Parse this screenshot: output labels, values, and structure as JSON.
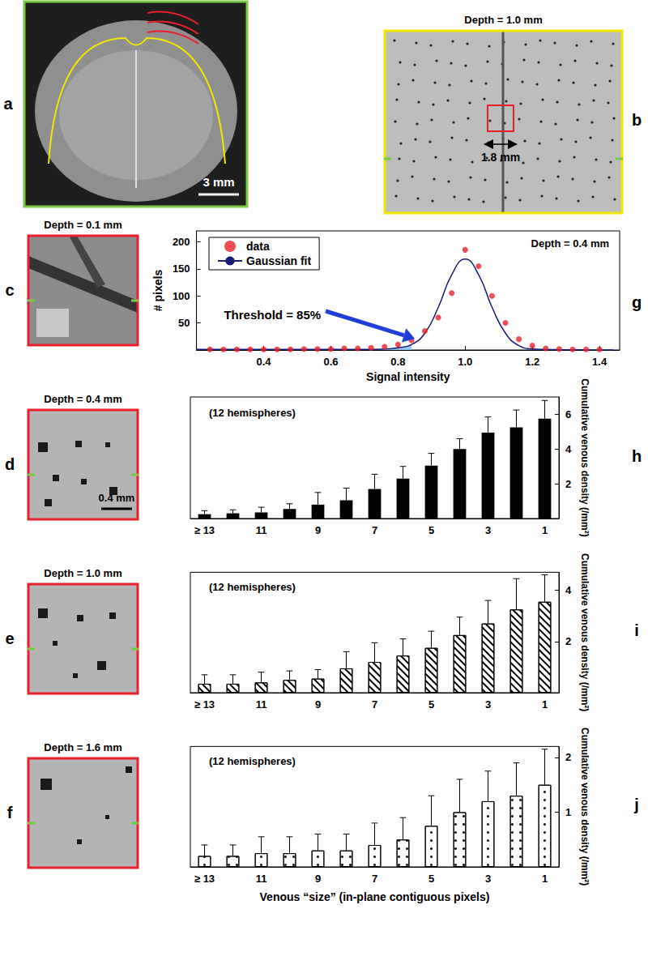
{
  "panels": [
    {
      "panel": "a",
      "scale_bar": "3 mm"
    },
    {
      "panel": "b",
      "title": "Depth = 1.0 mm",
      "scale_bar": "1.8 mm"
    },
    {
      "panel": "c",
      "title": "Depth = 0.1 mm"
    },
    {
      "panel": "d",
      "title": "Depth = 0.4 mm",
      "scale_bar": "0.4 mm"
    },
    {
      "panel": "e",
      "title": "Depth = 1.0 mm"
    },
    {
      "panel": "f",
      "title": "Depth = 1.6 mm"
    }
  ],
  "chart_data": [
    {
      "panel": "g",
      "type": "scatter",
      "annotation": "Depth = 0.4 mm",
      "x_label": "Signal intensity",
      "y_label": "# pixels",
      "threshold": {
        "value": 0.85,
        "label": "Threshold = 85%"
      },
      "xlim": [
        0.2,
        1.46
      ],
      "xticks": [
        0.4,
        0.6,
        0.8,
        {
          "value": 1,
          "label": "1.0"
        },
        1.2,
        1.4
      ],
      "ylim": [
        0,
        220
      ],
      "yticks": [
        50,
        100,
        150,
        200
      ],
      "legend": "top-left",
      "grid": false,
      "series": [
        {
          "name": "data",
          "type": "scatter",
          "color": "#e8202a",
          "marker": "circle",
          "x": [
            0.24,
            0.28,
            0.32,
            0.36,
            0.4,
            0.44,
            0.48,
            0.52,
            0.56,
            0.6,
            0.64,
            0.68,
            0.72,
            0.76,
            0.8,
            0.84,
            0.88,
            0.92,
            0.96,
            1,
            1.04,
            1.08,
            1.12,
            1.16,
            1.2,
            1.24,
            1.28,
            1.32,
            1.36,
            1.4
          ],
          "values": [
            1,
            1,
            1,
            1,
            1,
            1,
            1,
            2,
            2,
            2,
            3,
            3,
            4,
            6,
            10,
            18,
            35,
            60,
            105,
            185,
            155,
            100,
            50,
            20,
            8,
            3,
            2,
            1,
            1,
            1
          ]
        },
        {
          "name": "Gaussian fit",
          "type": "line",
          "color": "#1a1a7a",
          "line_style": "solid",
          "x": [
            0.2,
            0.24,
            0.28,
            0.32,
            0.36,
            0.4,
            0.44,
            0.48,
            0.52,
            0.56,
            0.6,
            0.64,
            0.68,
            0.72,
            0.76,
            0.8,
            0.84,
            0.88,
            0.92,
            0.96,
            1,
            1.04,
            1.08,
            1.12,
            1.16,
            1.2,
            1.24,
            1.28,
            1.32,
            1.36,
            1.4,
            1.44
          ],
          "values": [
            1,
            1,
            1,
            1,
            1,
            1,
            1,
            1,
            1,
            1,
            1,
            1,
            1,
            1,
            2,
            4,
            10,
            31,
            79,
            139,
            168,
            139,
            79,
            31,
            8,
            2,
            1,
            0.5,
            0.3,
            0.2,
            0.1,
            0.1
          ]
        }
      ]
    },
    {
      "panel": "h",
      "type": "bar",
      "annotation": "(12 hemispheres)",
      "y_label": "Cumulative venous density (/mm²)",
      "categories": [
        "≥ 13",
        null,
        "11",
        null,
        "9",
        null,
        "7",
        null,
        "5",
        null,
        "3",
        null,
        "1"
      ],
      "values": [
        0.25,
        0.3,
        0.35,
        0.55,
        0.8,
        1.05,
        1.7,
        2.3,
        3.05,
        4.0,
        4.95,
        5.25,
        5.75
      ],
      "errors": [
        0.2,
        0.2,
        0.3,
        0.3,
        0.7,
        0.7,
        0.85,
        0.7,
        0.7,
        0.6,
        0.9,
        1.0,
        1.05
      ],
      "color": "#000000",
      "marker": "solid",
      "ylim": [
        0,
        7
      ],
      "yticks": [
        2,
        4,
        6
      ],
      "grid": false
    },
    {
      "panel": "i",
      "type": "bar",
      "annotation": "(12 hemispheres)",
      "y_label": "Cumulative venous density (/mm²)",
      "categories": [
        "≥ 13",
        null,
        "11",
        null,
        "9",
        null,
        "7",
        null,
        "5",
        null,
        "3",
        null,
        "1"
      ],
      "values": [
        0.35,
        0.35,
        0.4,
        0.5,
        0.55,
        0.95,
        1.2,
        1.45,
        1.75,
        2.25,
        2.7,
        3.25,
        3.55
      ],
      "errors": [
        0.35,
        0.35,
        0.4,
        0.35,
        0.35,
        0.65,
        0.75,
        0.65,
        0.65,
        0.7,
        0.9,
        1.2,
        1.05
      ],
      "color": "#000000",
      "marker": "hatched",
      "ylim": [
        0,
        4.7
      ],
      "yticks": [
        2,
        4
      ],
      "grid": false
    },
    {
      "panel": "j",
      "type": "bar",
      "annotation": "(12 hemispheres)",
      "y_label": "Cumulative venous density (/mm²)",
      "x_label": "Venous “size” (in-plane contiguous pixels)",
      "categories": [
        "≥ 13",
        null,
        "11",
        null,
        "9",
        null,
        "7",
        null,
        "5",
        null,
        "3",
        null,
        "1"
      ],
      "values": [
        0.2,
        0.2,
        0.25,
        0.25,
        0.3,
        0.3,
        0.4,
        0.5,
        0.75,
        1.0,
        1.2,
        1.3,
        1.5
      ],
      "errors": [
        0.2,
        0.2,
        0.3,
        0.3,
        0.3,
        0.3,
        0.4,
        0.4,
        0.55,
        0.6,
        0.55,
        0.6,
        0.65
      ],
      "color": "#000000",
      "marker": "dotted",
      "ylim": [
        0,
        2.2
      ],
      "yticks": [
        1,
        2
      ],
      "grid": false
    }
  ]
}
